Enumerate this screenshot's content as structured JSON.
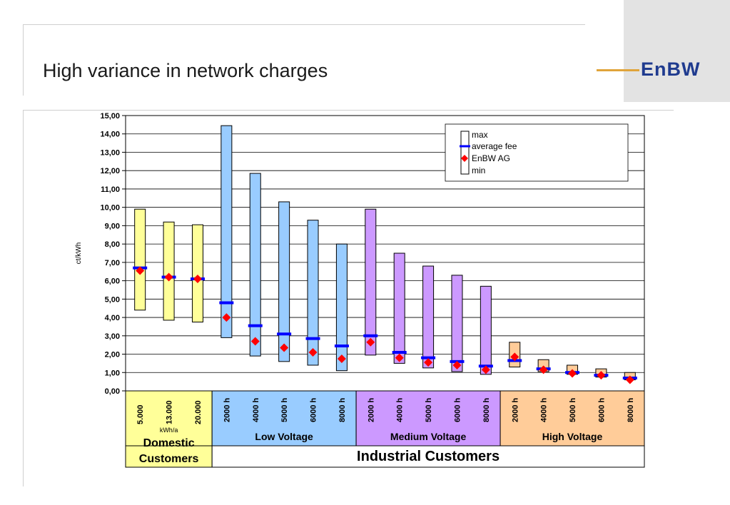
{
  "page": {
    "title": "High variance in network charges",
    "logo_text": "EnBW"
  },
  "colors": {
    "domestic": "#ffff99",
    "low": "#99ccff",
    "medium": "#cc99ff",
    "high": "#ffcc99",
    "avg": "#0000ff",
    "enbw": "#ff0000"
  },
  "chart_data": {
    "type": "floating-bar",
    "ylabel": "ct/kWh",
    "ylim": [
      0,
      15
    ],
    "yticks": [
      "0,00",
      "1,00",
      "2,00",
      "3,00",
      "4,00",
      "5,00",
      "6,00",
      "7,00",
      "8,00",
      "9,00",
      "10,00",
      "11,00",
      "12,00",
      "13,00",
      "14,00",
      "15,00"
    ],
    "legend": {
      "position": "top-right",
      "items": [
        "max",
        "average fee",
        "EnBW AG",
        "min"
      ]
    },
    "groups": [
      {
        "name": "Domestic Customers",
        "unit": "kWh/a",
        "color": "#ffff99",
        "categories": [
          "5.000",
          "13.000",
          "20.000"
        ],
        "min": [
          4.4,
          3.85,
          3.75
        ],
        "max": [
          9.9,
          9.2,
          9.05
        ],
        "average": [
          6.7,
          6.2,
          6.1
        ],
        "enbw": [
          6.55,
          6.2,
          6.1
        ]
      },
      {
        "name": "Low Voltage",
        "color": "#99ccff",
        "categories": [
          "2000 h",
          "4000 h",
          "5000 h",
          "6000 h",
          "8000 h"
        ],
        "min": [
          2.9,
          1.9,
          1.6,
          1.4,
          1.1
        ],
        "max": [
          14.45,
          11.85,
          10.3,
          9.3,
          8.0
        ],
        "average": [
          4.8,
          3.55,
          3.1,
          2.85,
          2.45
        ],
        "enbw": [
          4.0,
          2.7,
          2.35,
          2.1,
          1.75
        ]
      },
      {
        "name": "Medium Voltage",
        "color": "#cc99ff",
        "categories": [
          "2000 h",
          "4000 h",
          "5000 h",
          "6000 h",
          "8000 h"
        ],
        "min": [
          1.95,
          1.5,
          1.25,
          1.05,
          0.9
        ],
        "max": [
          9.9,
          7.5,
          6.8,
          6.3,
          5.7
        ],
        "average": [
          3.0,
          2.1,
          1.8,
          1.6,
          1.35
        ],
        "enbw": [
          2.65,
          1.8,
          1.55,
          1.4,
          1.15
        ]
      },
      {
        "name": "High Voltage",
        "color": "#ffcc99",
        "categories": [
          "2000 h",
          "4000 h",
          "5000 h",
          "6000 h",
          "8000 h"
        ],
        "min": [
          1.3,
          1.05,
          0.9,
          0.75,
          0.6
        ],
        "max": [
          2.65,
          1.7,
          1.4,
          1.2,
          1.0
        ],
        "average": [
          1.65,
          1.2,
          1.0,
          0.85,
          0.7
        ],
        "enbw": [
          1.85,
          1.15,
          0.95,
          0.85,
          0.6
        ]
      }
    ],
    "domestic_label": [
      "Domestic",
      "Customers"
    ],
    "industrial_label": "Industrial Customers"
  }
}
